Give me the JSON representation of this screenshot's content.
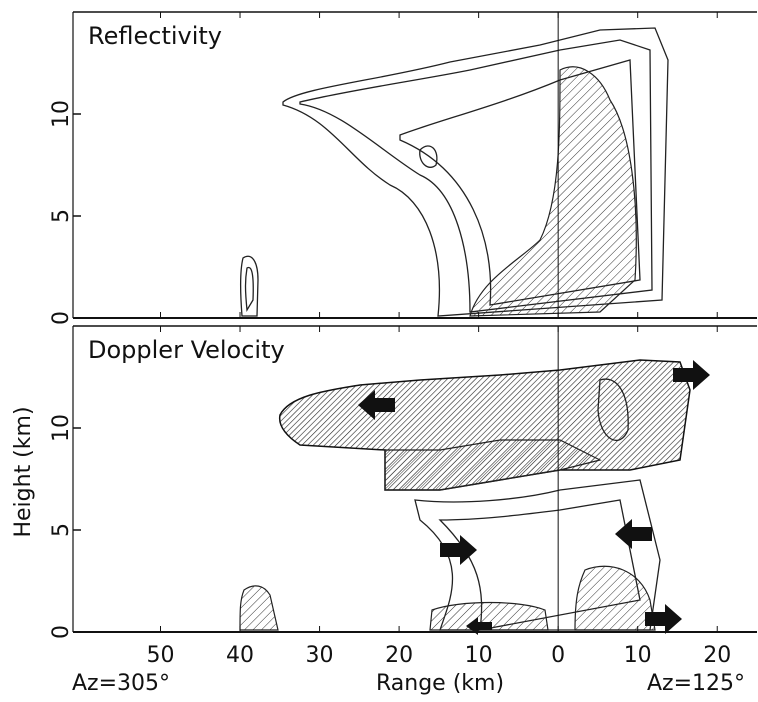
{
  "chart_data": [
    {
      "type": "contour",
      "title": "Reflectivity",
      "xlim": [
        -61,
        25
      ],
      "ylim": [
        0,
        15
      ],
      "yticks": [
        0,
        5,
        10
      ]
    },
    {
      "type": "contour",
      "title": "Doppler Velocity",
      "xlim": [
        -61,
        25
      ],
      "ylim": [
        0,
        15
      ],
      "yticks": [
        0,
        5,
        10
      ],
      "ylabel": "Height (km)",
      "xlabel": "Range (km)",
      "xticks": [
        {
          "value": -50,
          "label": "50"
        },
        {
          "value": -40,
          "label": "40"
        },
        {
          "value": -30,
          "label": "30"
        },
        {
          "value": -20,
          "label": "20"
        },
        {
          "value": -10,
          "label": "10"
        },
        0,
        10,
        20
      ],
      "annotations": [
        "Az=305°",
        "Az=125°"
      ]
    }
  ]
}
